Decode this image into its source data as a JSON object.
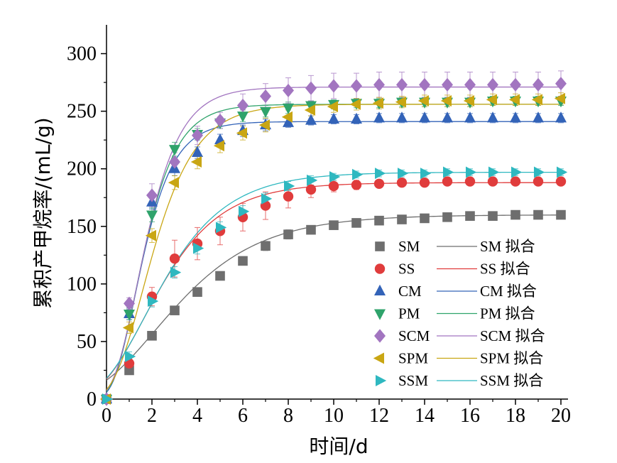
{
  "chart_data": {
    "type": "scatter",
    "xlabel": "时间/d",
    "ylabel": "累积产甲烷率/(mL/g)",
    "xlim": [
      0,
      20
    ],
    "ylim": [
      0,
      325
    ],
    "xticks": [
      0,
      2,
      4,
      6,
      8,
      10,
      12,
      14,
      16,
      18,
      20
    ],
    "yticks": [
      0,
      50,
      100,
      150,
      200,
      250,
      300
    ],
    "grid": false,
    "legend_position": "bottom-right",
    "x": [
      0,
      1,
      2,
      3,
      4,
      5,
      6,
      7,
      8,
      9,
      10,
      11,
      12,
      13,
      14,
      15,
      16,
      17,
      18,
      19,
      20
    ],
    "series": [
      {
        "name": "SM",
        "fit_name": "SM 拟合",
        "marker": "square",
        "color": "#6e6e6e",
        "values": [
          0,
          25,
          55,
          77,
          93,
          107,
          120,
          133,
          143,
          147,
          151,
          153,
          155,
          156,
          157,
          158,
          159,
          159,
          160,
          160,
          160
        ],
        "errors": [
          0,
          2,
          3,
          3,
          3,
          3,
          3,
          4,
          4,
          3,
          3,
          2,
          2,
          2,
          2,
          2,
          2,
          2,
          2,
          2,
          2
        ],
        "fit": {
          "Pmax": 160,
          "Rmax": 23,
          "lambda": -0.45
        }
      },
      {
        "name": "SS",
        "fit_name": "SS 拟合",
        "marker": "circle",
        "color": "#e03c3c",
        "values": [
          0,
          31,
          89,
          122,
          135,
          146,
          158,
          168,
          176,
          182,
          185,
          186,
          187,
          188,
          188,
          189,
          189,
          189,
          189,
          189,
          189
        ],
        "errors": [
          0,
          4,
          8,
          16,
          14,
          12,
          12,
          12,
          10,
          7,
          5,
          4,
          3,
          3,
          3,
          3,
          3,
          3,
          3,
          3,
          3
        ],
        "fit": {
          "Pmax": 188,
          "Rmax": 37,
          "lambda": -0.25
        }
      },
      {
        "name": "CM",
        "fit_name": "CM 拟合",
        "marker": "triangle-up",
        "color": "#3363b8",
        "values": [
          0,
          74,
          171,
          200,
          214,
          225,
          233,
          238,
          240,
          242,
          243,
          243,
          244,
          244,
          244,
          244,
          244,
          244,
          244,
          244,
          244
        ],
        "errors": [
          0,
          5,
          6,
          6,
          5,
          5,
          5,
          5,
          4,
          4,
          4,
          4,
          4,
          4,
          4,
          4,
          4,
          4,
          4,
          4,
          4
        ],
        "fit": {
          "Pmax": 241,
          "Rmax": 94,
          "lambda": 0.3
        }
      },
      {
        "name": "PM",
        "fit_name": "PM 拟合",
        "marker": "triangle-down",
        "color": "#2fa36b",
        "values": [
          0,
          74,
          160,
          217,
          230,
          240,
          246,
          250,
          253,
          255,
          256,
          257,
          257,
          258,
          258,
          258,
          258,
          259,
          259,
          259,
          259
        ],
        "errors": [
          0,
          5,
          6,
          6,
          5,
          5,
          5,
          5,
          5,
          4,
          4,
          4,
          4,
          4,
          4,
          4,
          4,
          4,
          4,
          4,
          4
        ],
        "fit": {
          "Pmax": 256,
          "Rmax": 95,
          "lambda": 0.3
        }
      },
      {
        "name": "SCM",
        "fit_name": "SCM 拟合",
        "marker": "diamond",
        "color": "#a275c0",
        "values": [
          0,
          83,
          177,
          206,
          229,
          242,
          255,
          263,
          268,
          270,
          272,
          272,
          273,
          273,
          273,
          273,
          273,
          273,
          273,
          273,
          274
        ],
        "errors": [
          0,
          5,
          10,
          8,
          8,
          7,
          10,
          11,
          11,
          11,
          11,
          11,
          11,
          11,
          11,
          11,
          11,
          11,
          11,
          11,
          11
        ],
        "fit": {
          "Pmax": 271,
          "Rmax": 95,
          "lambda": 0.3
        }
      },
      {
        "name": "SPM",
        "fit_name": "SPM 拟合",
        "marker": "triangle-left",
        "color": "#c9a613",
        "values": [
          0,
          62,
          142,
          188,
          206,
          220,
          231,
          238,
          245,
          251,
          254,
          256,
          257,
          258,
          259,
          259,
          259,
          260,
          260,
          260,
          261
        ],
        "errors": [
          0,
          5,
          6,
          6,
          6,
          6,
          6,
          6,
          6,
          5,
          5,
          5,
          5,
          5,
          5,
          5,
          5,
          5,
          5,
          5,
          5
        ],
        "fit": {
          "Pmax": 256,
          "Rmax": 73,
          "lambda": 0.3
        }
      },
      {
        "name": "SSM",
        "fit_name": "SSM 拟合",
        "marker": "triangle-right",
        "color": "#2fb8c0",
        "values": [
          0,
          37,
          85,
          110,
          131,
          149,
          163,
          174,
          185,
          190,
          193,
          195,
          196,
          196,
          196,
          197,
          197,
          197,
          197,
          197,
          197
        ],
        "errors": [
          0,
          4,
          5,
          5,
          5,
          5,
          5,
          5,
          4,
          4,
          3,
          3,
          3,
          3,
          3,
          3,
          3,
          3,
          3,
          3,
          3
        ],
        "fit": {
          "Pmax": 197,
          "Rmax": 37,
          "lambda": -0.25
        }
      }
    ]
  }
}
